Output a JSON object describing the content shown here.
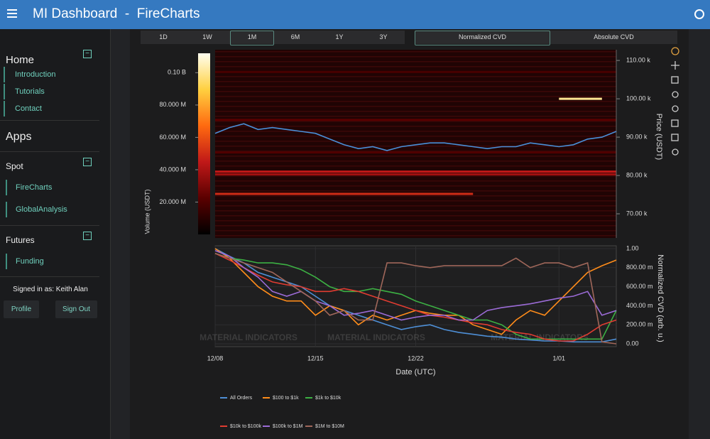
{
  "header": {
    "title": "MI Dashboard  -  FireCharts"
  },
  "sidebar": {
    "home": {
      "title": "Home",
      "links": [
        "Introduction",
        "Tutorials",
        "Contact"
      ]
    },
    "apps": "Apps",
    "groups": [
      {
        "title": "Spot",
        "links": [
          "FireCharts",
          "GlobalAnalysis"
        ]
      },
      {
        "title": "Futures",
        "links": [
          "Funding"
        ]
      }
    ],
    "user": "Signed in as: Keith Alan",
    "buttons": [
      "Profile",
      "Sign Out"
    ]
  },
  "toolbar": {
    "ranges": [
      "1D",
      "1W",
      "1M",
      "6M",
      "1Y",
      "3Y"
    ],
    "active_range": 2,
    "modes": [
      "Normalized CVD",
      "Absolute CVD"
    ],
    "active_mode": 0
  },
  "chart_data": [
    {
      "type": "heatmap",
      "ylabel": "Price (USDT)",
      "colorbar_label": "Volume (USDT)",
      "xlim": [
        "12/08",
        "1/05"
      ],
      "ylim": [
        63700,
        112800
      ],
      "yticks": [
        {
          "value": 70000,
          "label": "70.00 k"
        },
        {
          "value": 80000,
          "label": "80.00 k"
        },
        {
          "value": 90000,
          "label": "90.00 k"
        },
        {
          "value": 100000,
          "label": "100.00 k"
        },
        {
          "value": 110000,
          "label": "110.00 k"
        }
      ],
      "clim": [
        0,
        112000000
      ],
      "colorbar_ticks": [
        {
          "value": 20000000,
          "label": "20.000 M"
        },
        {
          "value": 40000000,
          "label": "40.000 M"
        },
        {
          "value": 60000000,
          "label": "60.000 M"
        },
        {
          "value": 80000000,
          "label": "80.000 M"
        },
        {
          "value": 100000000,
          "label": "0.10 B"
        }
      ],
      "colorscale": [
        "#000000",
        "#5a0000",
        "#c01818",
        "#ff6a10",
        "#ffd040",
        "#fffff0"
      ],
      "price_color": "#4a8fd8",
      "x": [
        "12/08",
        "12/09",
        "12/10",
        "12/11",
        "12/12",
        "12/13",
        "12/14",
        "12/15",
        "12/16",
        "12/17",
        "12/18",
        "12/19",
        "12/20",
        "12/21",
        "12/22",
        "12/23",
        "12/24",
        "12/25",
        "12/26",
        "12/27",
        "12/28",
        "12/29",
        "12/30",
        "12/31",
        "1/01",
        "1/02",
        "1/03",
        "1/04",
        "1/05"
      ],
      "price": [
        91000,
        92500,
        93500,
        92000,
        92500,
        92000,
        91500,
        91000,
        89500,
        88000,
        87000,
        87500,
        86500,
        87500,
        88000,
        88500,
        88500,
        88000,
        87500,
        87000,
        87500,
        87500,
        88500,
        88000,
        87500,
        88000,
        89500,
        90000,
        91500
      ],
      "levels": [
        {
          "price": 100000,
          "volume": 100000000,
          "from": "1/01",
          "to": "1/04"
        },
        {
          "price": 81000,
          "volume": 45000000,
          "from": "12/08",
          "to": "1/05"
        },
        {
          "price": 80300,
          "volume": 38000000,
          "from": "12/08",
          "to": "1/05"
        },
        {
          "price": 75200,
          "volume": 50000000,
          "from": "12/08",
          "to": "12/26"
        },
        {
          "price": 94500,
          "volume": 22000000,
          "from": "12/08",
          "to": "1/05"
        },
        {
          "price": 86000,
          "volume": 20000000,
          "from": "12/08",
          "to": "1/05"
        },
        {
          "price": 107000,
          "volume": 18000000,
          "from": "12/08",
          "to": "1/05"
        }
      ]
    },
    {
      "type": "line",
      "xlabel": "Date (UTC)",
      "ylabel": "Normalized CVD (arb. u.)",
      "watermark": "MATERIAL INDICATORS",
      "xlim": [
        "12/08",
        "1/05"
      ],
      "xticks": [
        "12/08",
        "12/15",
        "12/22",
        "1/01"
      ],
      "ylim": [
        -0.03,
        1.03
      ],
      "yticks": [
        {
          "value": 0,
          "label": "0.00"
        },
        {
          "value": 0.2,
          "label": "200.00 m"
        },
        {
          "value": 0.4,
          "label": "400.00 m"
        },
        {
          "value": 0.6,
          "label": "600.00 m"
        },
        {
          "value": 0.8,
          "label": "800.00 m"
        },
        {
          "value": 1,
          "label": "1.00"
        }
      ],
      "x": [
        "12/08",
        "12/09",
        "12/10",
        "12/11",
        "12/12",
        "12/13",
        "12/14",
        "12/15",
        "12/16",
        "12/17",
        "12/18",
        "12/19",
        "12/20",
        "12/21",
        "12/22",
        "12/23",
        "12/24",
        "12/25",
        "12/26",
        "12/27",
        "12/28",
        "12/29",
        "12/30",
        "12/31",
        "1/01",
        "1/02",
        "1/03",
        "1/04",
        "1/05"
      ],
      "series": [
        {
          "name": "All Orders",
          "color": "#4e8fd6",
          "values": [
            1.0,
            0.92,
            0.85,
            0.75,
            0.7,
            0.65,
            0.6,
            0.5,
            0.4,
            0.35,
            0.3,
            0.25,
            0.2,
            0.15,
            0.18,
            0.2,
            0.15,
            0.12,
            0.1,
            0.08,
            0.07,
            0.05,
            0.04,
            0.03,
            0.03,
            0.02,
            0.02,
            0.02,
            0.05
          ]
        },
        {
          "name": "$100 to $1k",
          "color": "#ff8c1a",
          "values": [
            1.0,
            0.9,
            0.75,
            0.6,
            0.5,
            0.45,
            0.45,
            0.3,
            0.4,
            0.35,
            0.2,
            0.3,
            0.25,
            0.3,
            0.35,
            0.32,
            0.3,
            0.3,
            0.2,
            0.15,
            0.1,
            0.25,
            0.35,
            0.3,
            0.45,
            0.6,
            0.75,
            0.82,
            0.88
          ]
        },
        {
          "name": "$1k to $10k",
          "color": "#3cb043",
          "values": [
            0.95,
            0.9,
            0.88,
            0.85,
            0.85,
            0.83,
            0.78,
            0.7,
            0.6,
            0.55,
            0.55,
            0.58,
            0.55,
            0.52,
            0.45,
            0.4,
            0.35,
            0.3,
            0.25,
            0.25,
            0.2,
            0.1,
            0.05,
            0.05,
            0.05,
            0.05,
            0.05,
            0.05,
            0.35
          ]
        },
        {
          "name": "$10k to $100k",
          "color": "#e03c31",
          "values": [
            0.95,
            0.88,
            0.8,
            0.72,
            0.65,
            0.62,
            0.6,
            0.55,
            0.55,
            0.58,
            0.55,
            0.5,
            0.45,
            0.4,
            0.35,
            0.3,
            0.28,
            0.25,
            0.22,
            0.2,
            0.15,
            0.12,
            0.1,
            0.05,
            0.03,
            0.03,
            0.1,
            0.2,
            0.25
          ]
        },
        {
          "name": "$100k to $1M",
          "color": "#9b6bd6",
          "values": [
            0.98,
            0.92,
            0.8,
            0.7,
            0.55,
            0.5,
            0.55,
            0.45,
            0.4,
            0.3,
            0.32,
            0.35,
            0.3,
            0.25,
            0.28,
            0.3,
            0.3,
            0.25,
            0.25,
            0.35,
            0.38,
            0.4,
            0.42,
            0.45,
            0.48,
            0.5,
            0.55,
            0.3,
            0.35
          ]
        },
        {
          "name": "$1M to $10M",
          "color": "#a0675a",
          "values": [
            0.95,
            0.9,
            0.85,
            0.8,
            0.75,
            0.65,
            0.55,
            0.45,
            0.3,
            0.35,
            0.25,
            0.25,
            0.85,
            0.85,
            0.82,
            0.8,
            0.82,
            0.82,
            0.82,
            0.82,
            0.82,
            0.9,
            0.8,
            0.85,
            0.85,
            0.8,
            0.85,
            0.02,
            0.0
          ]
        }
      ]
    }
  ]
}
